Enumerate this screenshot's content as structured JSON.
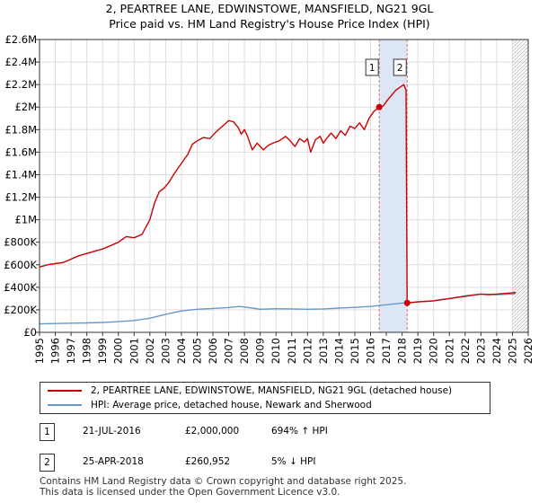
{
  "title_line1": "2, PEARTREE LANE, EDWINSTOWE, MANSFIELD, NG21 9GL",
  "title_line2": "Price paid vs. HM Land Registry's House Price Index (HPI)",
  "colors": {
    "property": "#cc0000",
    "hpi": "#6699cc",
    "shade": "#dde6f5",
    "vline": "#e07070",
    "grid": "#dddddd",
    "hatch": "#bbbbbb"
  },
  "chart_data": {
    "type": "line",
    "title": "Price paid vs. HM Land Registry's House Price Index (HPI)",
    "xlabel": "",
    "ylabel": "",
    "xlim": [
      1995,
      2026
    ],
    "ylim": [
      0,
      2600000
    ],
    "y_ticks": [
      0,
      200000,
      400000,
      600000,
      800000,
      1000000,
      1200000,
      1400000,
      1600000,
      1800000,
      2000000,
      2200000,
      2400000,
      2600000
    ],
    "y_tick_labels": [
      "£0",
      "£200K",
      "£400K",
      "£600K",
      "£800K",
      "£1M",
      "£1.2M",
      "£1.4M",
      "£1.6M",
      "£1.8M",
      "£2M",
      "£2.2M",
      "£2.4M",
      "£2.6M"
    ],
    "x_ticks": [
      1995,
      1996,
      1997,
      1998,
      1999,
      2000,
      2001,
      2002,
      2003,
      2004,
      2005,
      2006,
      2007,
      2008,
      2009,
      2010,
      2011,
      2012,
      2013,
      2014,
      2015,
      2016,
      2017,
      2018,
      2019,
      2020,
      2021,
      2022,
      2023,
      2024,
      2025,
      2026
    ],
    "x_tick_labels": [
      "1995",
      "1996",
      "1997",
      "1998",
      "1999",
      "2000",
      "2001",
      "2002",
      "2003",
      "2004",
      "2005",
      "2006",
      "2007",
      "2008",
      "2009",
      "2010",
      "2011",
      "2012",
      "2013",
      "2014",
      "2015",
      "2016",
      "2017",
      "2018",
      "2019",
      "2020",
      "2021",
      "2022",
      "2023",
      "2024",
      "2025",
      "2026"
    ],
    "grid": true,
    "shaded_region": [
      2016.55,
      2018.32
    ],
    "hatched_from": 2025.0,
    "series": [
      {
        "name": "2, PEARTREE LANE, EDWINSTOWE, MANSFIELD, NG21 9GL (detached house)",
        "color": "#cc0000",
        "x": [
          1995.0,
          1995.5,
          1996.0,
          1996.5,
          1997.0,
          1997.5,
          1998.0,
          1998.5,
          1999.0,
          1999.5,
          2000.0,
          2000.5,
          2001.0,
          2001.5,
          2002.0,
          2002.3,
          2002.6,
          2002.9,
          2003.2,
          2003.5,
          2003.8,
          2004.1,
          2004.4,
          2004.7,
          2005.0,
          2005.4,
          2005.8,
          2006.2,
          2006.6,
          2007.0,
          2007.3,
          2007.6,
          2007.8,
          2008.0,
          2008.2,
          2008.5,
          2008.8,
          2009.0,
          2009.2,
          2009.5,
          2009.8,
          2010.2,
          2010.6,
          2010.9,
          2011.2,
          2011.5,
          2011.8,
          2012.0,
          2012.2,
          2012.5,
          2012.8,
          2013.0,
          2013.2,
          2013.5,
          2013.8,
          2014.1,
          2014.4,
          2014.7,
          2015.0,
          2015.3,
          2015.6,
          2015.9,
          2016.2,
          2016.55,
          2016.8,
          2017.0,
          2017.3,
          2017.6,
          2017.9,
          2018.1,
          2018.25,
          2018.32,
          2018.6,
          2019.0,
          2019.5,
          2020.0,
          2020.5,
          2021.0,
          2021.5,
          2022.0,
          2022.5,
          2023.0,
          2023.5,
          2024.0,
          2024.5,
          2025.0,
          2025.2
        ],
        "values": [
          580000,
          600000,
          610000,
          620000,
          650000,
          680000,
          700000,
          720000,
          740000,
          770000,
          800000,
          850000,
          840000,
          870000,
          1000000,
          1150000,
          1250000,
          1280000,
          1330000,
          1400000,
          1460000,
          1520000,
          1580000,
          1670000,
          1700000,
          1730000,
          1720000,
          1780000,
          1830000,
          1880000,
          1870000,
          1820000,
          1760000,
          1800000,
          1740000,
          1620000,
          1680000,
          1650000,
          1620000,
          1660000,
          1680000,
          1700000,
          1740000,
          1700000,
          1650000,
          1720000,
          1690000,
          1720000,
          1600000,
          1710000,
          1740000,
          1680000,
          1720000,
          1770000,
          1720000,
          1790000,
          1750000,
          1830000,
          1810000,
          1860000,
          1800000,
          1900000,
          1960000,
          2000000,
          2010000,
          2050000,
          2100000,
          2150000,
          2180000,
          2200000,
          2150000,
          260952,
          265000,
          270000,
          275000,
          280000,
          290000,
          300000,
          310000,
          320000,
          330000,
          340000,
          335000,
          340000,
          345000,
          350000,
          355000
        ]
      },
      {
        "name": "HPI: Average price, detached house, Newark and Sherwood",
        "color": "#6699cc",
        "x": [
          1995.0,
          1996.0,
          1997.0,
          1998.0,
          1999.0,
          2000.0,
          2001.0,
          2002.0,
          2003.0,
          2004.0,
          2005.0,
          2006.0,
          2007.0,
          2007.7,
          2008.5,
          2009.0,
          2010.0,
          2011.0,
          2012.0,
          2013.0,
          2014.0,
          2015.0,
          2016.0,
          2017.0,
          2018.0,
          2019.0,
          2020.0,
          2021.0,
          2022.0,
          2023.0,
          2024.0,
          2025.0,
          2025.2
        ],
        "values": [
          75000,
          78000,
          81000,
          84000,
          88000,
          95000,
          105000,
          125000,
          160000,
          190000,
          205000,
          212000,
          220000,
          230000,
          215000,
          205000,
          210000,
          208000,
          205000,
          208000,
          215000,
          222000,
          230000,
          245000,
          260000,
          270000,
          280000,
          300000,
          325000,
          340000,
          335000,
          340000,
          345000
        ]
      }
    ],
    "markers": [
      {
        "id": "1",
        "x": 2016.55,
        "value": 2000000
      },
      {
        "id": "2",
        "x": 2018.32,
        "value": 260952
      }
    ]
  },
  "legend": {
    "property_label": "2, PEARTREE LANE, EDWINSTOWE, MANSFIELD, NG21 9GL (detached house)",
    "hpi_label": "HPI: Average price, detached house, Newark and Sherwood"
  },
  "transactions": [
    {
      "id": "1",
      "date": "21-JUL-2016",
      "price": "£2,000,000",
      "hpi": "694% ↑ HPI"
    },
    {
      "id": "2",
      "date": "25-APR-2018",
      "price": "£260,952",
      "hpi": "5% ↓ HPI"
    }
  ],
  "footer": {
    "line1": "Contains HM Land Registry data © Crown copyright and database right 2025.",
    "line2": "This data is licensed under the Open Government Licence v3.0."
  }
}
